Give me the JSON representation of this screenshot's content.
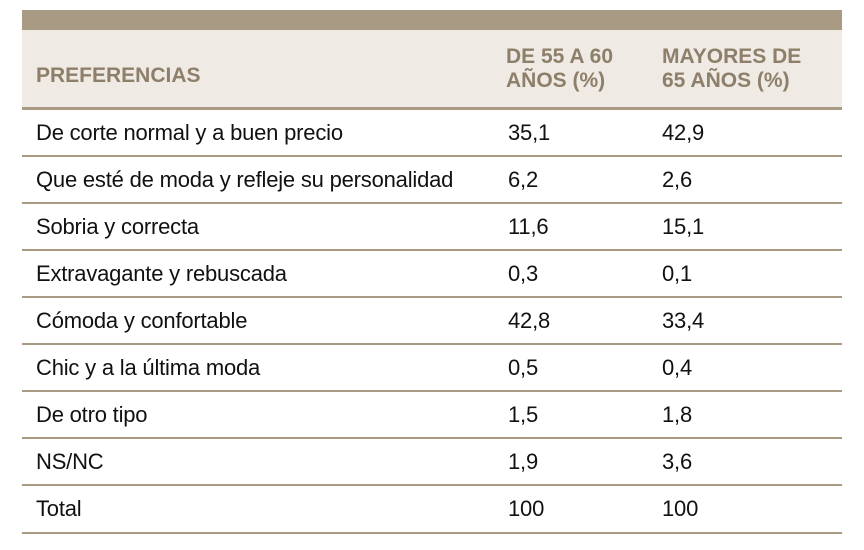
{
  "table": {
    "headers": {
      "preferencias": "PREFERENCIAS",
      "grupo_a_line1": "DE 55 A 60",
      "grupo_a_line2": "AÑOS (%)",
      "grupo_b_line1": "MAYORES DE",
      "grupo_b_line2": "65 AÑOS (%)"
    },
    "rows": [
      {
        "label": "De corte normal y a buen precio",
        "a": "35,1",
        "b": "42,9"
      },
      {
        "label": "Que esté de moda y refleje su personalidad",
        "a": "6,2",
        "b": "2,6"
      },
      {
        "label": "Sobria y correcta",
        "a": "11,6",
        "b": "15,1"
      },
      {
        "label": "Extravagante y rebuscada",
        "a": "0,3",
        "b": "0,1"
      },
      {
        "label": "Cómoda y confortable",
        "a": "42,8",
        "b": "33,4"
      },
      {
        "label": "Chic y a la última moda",
        "a": "0,5",
        "b": "0,4"
      },
      {
        "label": "De otro tipo",
        "a": "1,5",
        "b": "1,8"
      },
      {
        "label": "NS/NC",
        "a": "1,9",
        "b": "3,6"
      }
    ],
    "total": {
      "label": "Total",
      "a": "100",
      "b": "100"
    }
  },
  "colors": {
    "accent": "#a99a83",
    "header_bg": "#efeae4",
    "header_text": "#8e7f6a"
  }
}
